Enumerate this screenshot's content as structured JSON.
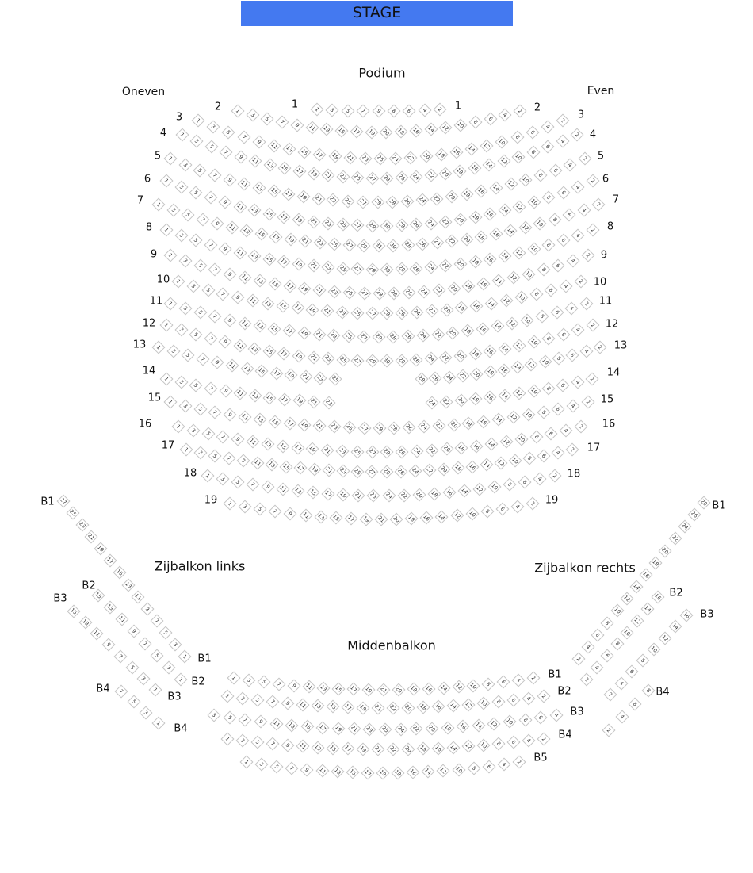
{
  "stage": {
    "label": "STAGE",
    "color": "#4479f0"
  },
  "podium": {
    "title": "Podium",
    "odd_label": "Oneven",
    "even_label": "Even",
    "rows": [
      {
        "label": "1",
        "odd": [
          1,
          9
        ],
        "even": [
          8,
          2
        ]
      },
      {
        "label": "2",
        "odd": [
          1,
          19
        ],
        "even": [
          20,
          2
        ]
      },
      {
        "label": "3",
        "odd": [
          1,
          25
        ],
        "even": [
          24,
          2
        ]
      },
      {
        "label": "4",
        "odd": [
          1,
          27
        ],
        "even": [
          28,
          2
        ]
      },
      {
        "label": "5",
        "odd": [
          1,
          29
        ],
        "even": [
          28,
          2
        ]
      },
      {
        "label": "6",
        "odd": [
          1,
          29
        ],
        "even": [
          30,
          2
        ]
      },
      {
        "label": "7",
        "odd": [
          1,
          31
        ],
        "even": [
          30,
          2
        ]
      },
      {
        "label": "8",
        "odd": [
          1,
          29
        ],
        "even": [
          30,
          2
        ]
      },
      {
        "label": "9",
        "odd": [
          1,
          29
        ],
        "even": [
          28,
          2
        ]
      },
      {
        "label": "10",
        "odd": [
          1,
          27
        ],
        "even": [
          28,
          2
        ]
      },
      {
        "label": "11",
        "odd": [
          1,
          29
        ],
        "even": [
          28,
          2
        ]
      },
      {
        "label": "12",
        "odd": [
          1,
          29
        ],
        "even": [
          30,
          2
        ]
      },
      {
        "label": "13",
        "odd": [
          1,
          25
        ],
        "even": [
          28,
          2
        ]
      },
      {
        "label": "14",
        "odd": [
          1,
          23
        ],
        "even": [
          24,
          2
        ]
      },
      {
        "label": "15",
        "odd": [
          1,
          29
        ],
        "even": [
          28,
          2
        ]
      },
      {
        "label": "16",
        "odd": [
          1,
          27
        ],
        "even": [
          28,
          2
        ]
      },
      {
        "label": "17",
        "odd": [
          1,
          27
        ],
        "even": [
          28,
          2
        ]
      },
      {
        "label": "18",
        "odd": [
          1,
          23
        ],
        "even": [
          24,
          2
        ]
      },
      {
        "label": "19",
        "odd": [
          1,
          21
        ],
        "even": [
          20,
          2
        ]
      }
    ]
  },
  "side_left": {
    "title": "Zijbalkon links",
    "rows": [
      {
        "label": "B1",
        "seats": [
          27,
          1
        ]
      },
      {
        "label": "B2",
        "seats": [
          15,
          1
        ]
      },
      {
        "label": "B3",
        "seats": [
          15,
          1
        ]
      },
      {
        "label": "B4",
        "seats": [
          7,
          1
        ]
      }
    ]
  },
  "side_right": {
    "title": "Zijbalkon rechts",
    "rows": [
      {
        "label": "B1",
        "seats": [
          2,
          28
        ]
      },
      {
        "label": "B2",
        "seats": [
          2,
          16
        ]
      },
      {
        "label": "B3",
        "seats": [
          2,
          16
        ]
      },
      {
        "label": "B4",
        "seats": [
          2,
          8
        ]
      }
    ]
  },
  "middle": {
    "title": "Middenbalkon",
    "rows": [
      {
        "label": "B1",
        "odd": [
          1,
          21
        ],
        "even": [
          20,
          2
        ]
      },
      {
        "label": "B2",
        "odd": [
          1,
          21
        ],
        "even": [
          22,
          2
        ]
      },
      {
        "label": "B3",
        "odd": [
          3,
          25
        ],
        "even": [
          24,
          4
        ]
      },
      {
        "label": "B4",
        "odd": [
          1,
          21
        ],
        "even": [
          22,
          2
        ]
      },
      {
        "label": "B5",
        "odd": [
          1,
          19
        ],
        "even": [
          18,
          2
        ]
      }
    ]
  }
}
